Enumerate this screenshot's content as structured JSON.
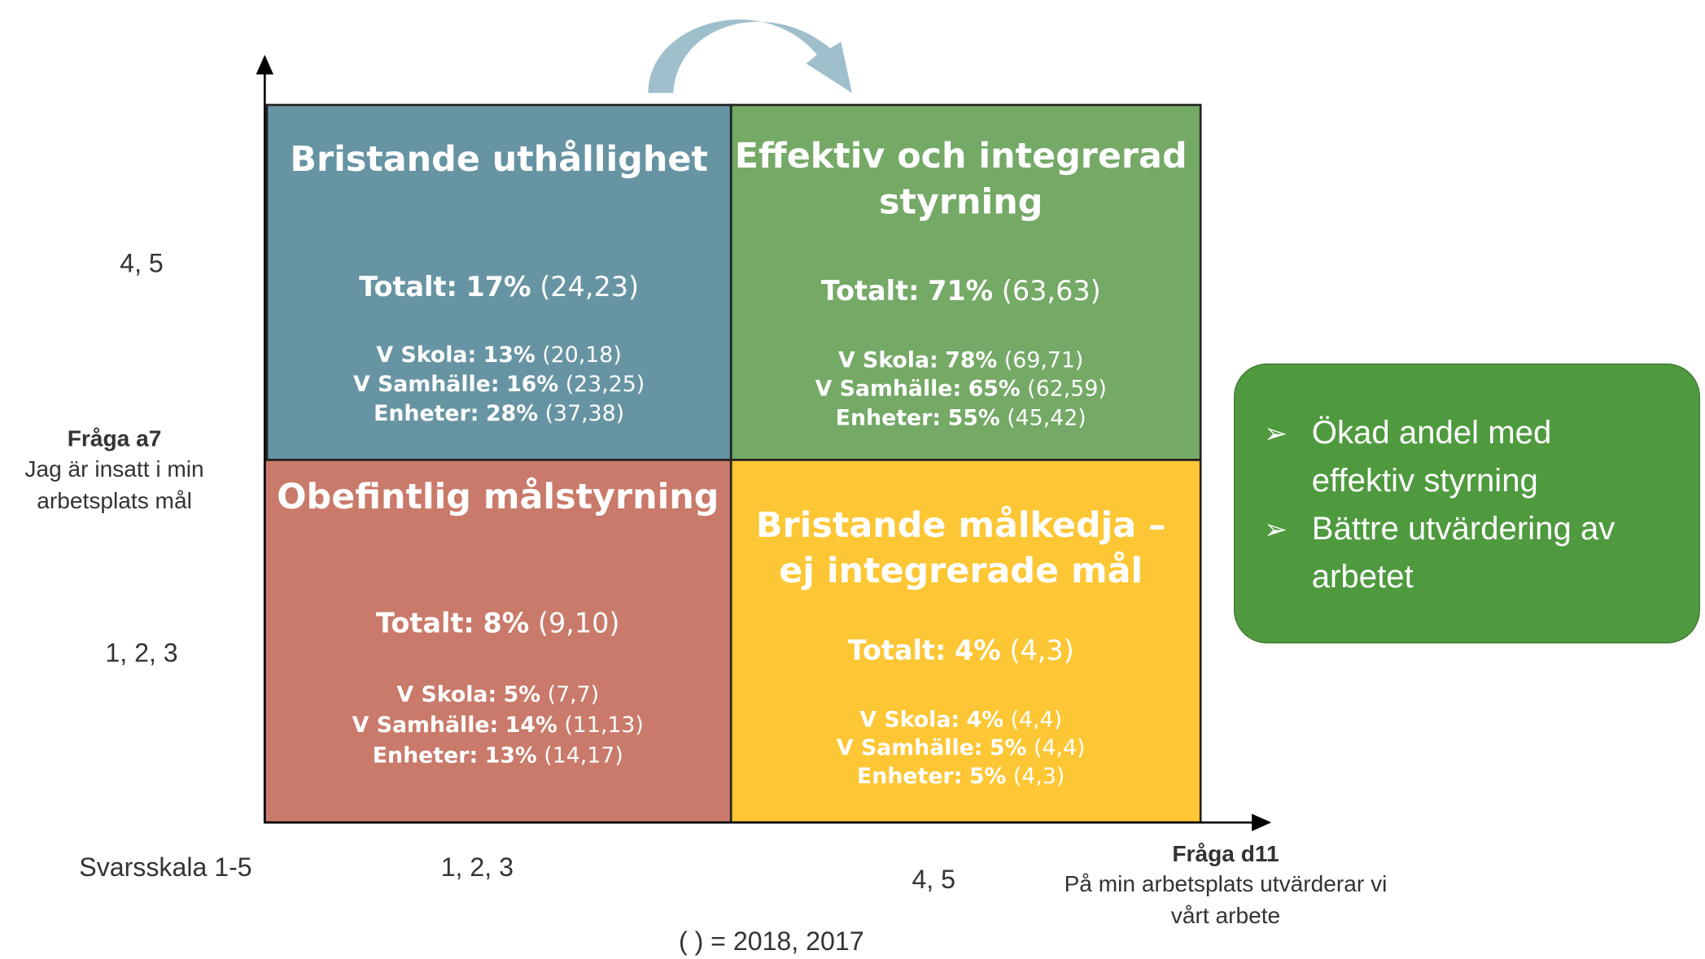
{
  "quadrants": [
    {
      "title": [
        "Bristande uthållighet"
      ],
      "total": {
        "label": "Totalt:",
        "value": "17%",
        "prev": "(24,23)"
      },
      "details": [
        {
          "label": "V Skola:",
          "value": "13%",
          "prev": "(20,18)"
        },
        {
          "label": "V Samhälle:",
          "value": "16%",
          "prev": "(23,25)"
        },
        {
          "label": "Enheter:",
          "value": "28%",
          "prev": "(37,38)"
        }
      ]
    },
    {
      "title": [
        "Effektiv och integrerad",
        "styrning"
      ],
      "total": {
        "label": "Totalt:",
        "value": "71%",
        "prev": "(63,63)"
      },
      "details": [
        {
          "label": "V Skola:",
          "value": "78%",
          "prev": "(69,71)"
        },
        {
          "label": "V Samhälle:",
          "value": "65%",
          "prev": "(62,59)"
        },
        {
          "label": "Enheter:",
          "value": "55%",
          "prev": "(45,42)"
        }
      ]
    },
    {
      "title": [
        "Obefintlig målstyrning"
      ],
      "total": {
        "label": "Totalt:",
        "value": "8%",
        "prev": "(9,10)"
      },
      "details": [
        {
          "label": "V Skola:",
          "value": "5%",
          "prev": "(7,7)"
        },
        {
          "label": "V Samhälle:",
          "value": "14%",
          "prev": "(11,13)"
        },
        {
          "label": "Enheter:",
          "value": "13%",
          "prev": "(14,17)"
        }
      ]
    },
    {
      "title": [
        "Bristande målkedja –",
        "ej integrerade mål"
      ],
      "total": {
        "label": "Totalt:",
        "value": "4%",
        "prev": "(4,3)"
      },
      "details": [
        {
          "label": "V Skola:",
          "value": "4%",
          "prev": "(4,4)"
        },
        {
          "label": "V Samhälle:",
          "value": "5%",
          "prev": "(4,4)"
        },
        {
          "label": "Enheter:",
          "value": "5%",
          "prev": "(4,3)"
        }
      ]
    }
  ],
  "y_axis": {
    "high": "4, 5",
    "low": "1, 2, 3",
    "question": "Fråga a7",
    "text": [
      "Jag är insatt i min",
      "arbetsplats mål"
    ]
  },
  "x_axis": {
    "scale": "Svarsskala 1-5",
    "low": "1, 2, 3",
    "high": "4, 5",
    "question": "Fråga d11",
    "text": [
      "På min arbetsplats utvärderar vi",
      "vårt arbete"
    ]
  },
  "legend": "( ) = 2018, 2017",
  "callout": {
    "bullet": "➢",
    "items": [
      [
        "Ökad andel med",
        "effektiv styrning"
      ],
      [
        "Bättre utvärdering av",
        "arbetet"
      ]
    ]
  }
}
